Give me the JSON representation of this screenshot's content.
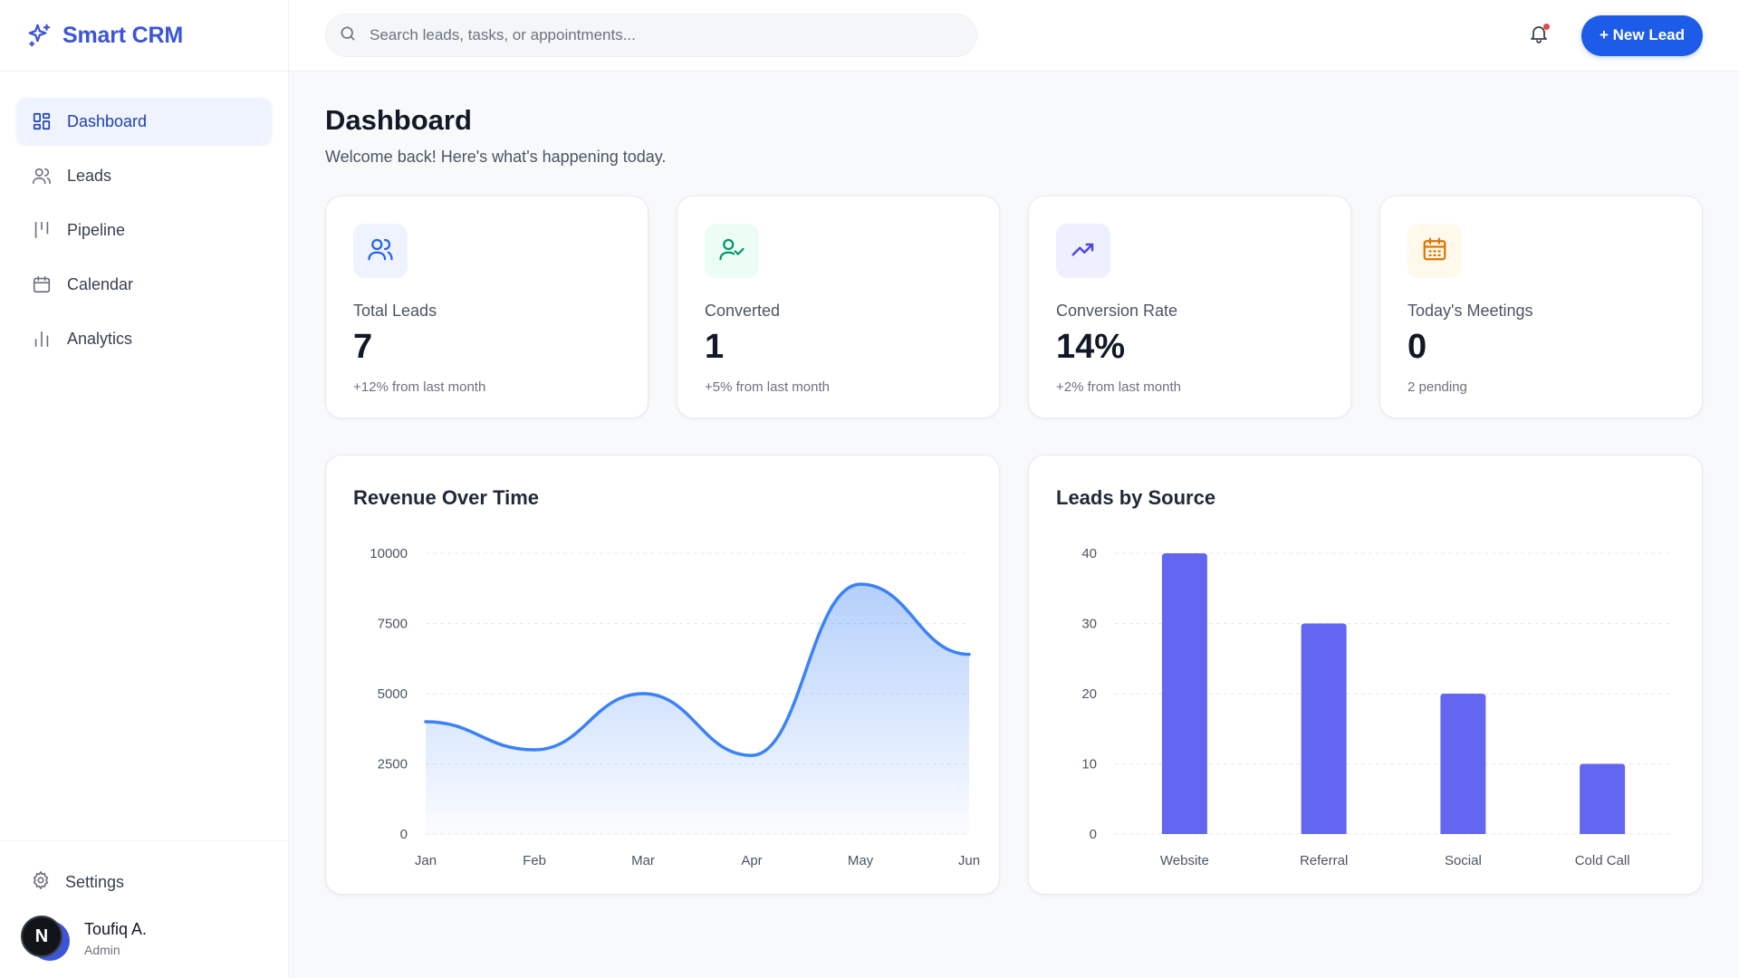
{
  "brand": {
    "name": "Smart CRM",
    "icon": "sparkles-icon",
    "color": "#3b55d6"
  },
  "sidebar": {
    "items": [
      {
        "label": "Dashboard",
        "icon": "grid-icon",
        "active": true
      },
      {
        "label": "Leads",
        "icon": "users-icon"
      },
      {
        "label": "Pipeline",
        "icon": "kanban-icon"
      },
      {
        "label": "Calendar",
        "icon": "calendar-icon"
      },
      {
        "label": "Analytics",
        "icon": "bar-chart-icon"
      }
    ],
    "settings_label": "Settings",
    "user": {
      "initial": "N",
      "name": "Toufiq A.",
      "role": "Admin"
    }
  },
  "search": {
    "placeholder": "Search leads, tasks, or appointments...",
    "value": ""
  },
  "header": {
    "new_lead_label": "+ New Lead",
    "notification_dot": true
  },
  "page": {
    "title": "Dashboard",
    "subtitle": "Welcome back! Here's what's happening today."
  },
  "stats": [
    {
      "label": "Total Leads",
      "value": "7",
      "sub": "+12% from last month",
      "icon": "users-icon",
      "color": "#2563eb",
      "bg": "#eef3fe"
    },
    {
      "label": "Converted",
      "value": "1",
      "sub": "+5% from last month",
      "icon": "user-check-icon",
      "color": "#059669",
      "bg": "#ecfdf5"
    },
    {
      "label": "Conversion Rate",
      "value": "14%",
      "sub": "+2% from last month",
      "icon": "trending-up-icon",
      "color": "#4f46e5",
      "bg": "#eef0fe"
    },
    {
      "label": "Today's Meetings",
      "value": "0",
      "sub": "2 pending",
      "icon": "calendar-icon",
      "color": "#d97706",
      "bg": "#fff8eb"
    }
  ],
  "chart_data": [
    {
      "type": "area",
      "title": "Revenue Over Time",
      "categories": [
        "Jan",
        "Feb",
        "Mar",
        "Apr",
        "May",
        "Jun"
      ],
      "values": [
        4000,
        3000,
        5000,
        2800,
        8900,
        6400
      ],
      "ylim": [
        0,
        10000
      ],
      "yticks": [
        0,
        2500,
        5000,
        7500,
        10000
      ],
      "grid": true,
      "color": "#3b82f6"
    },
    {
      "type": "bar",
      "title": "Leads by Source",
      "categories": [
        "Website",
        "Referral",
        "Social",
        "Cold Call"
      ],
      "values": [
        40,
        30,
        20,
        10
      ],
      "ylim": [
        0,
        40
      ],
      "yticks": [
        0,
        10,
        20,
        30,
        40
      ],
      "grid": true,
      "color": "#6366f1"
    }
  ]
}
